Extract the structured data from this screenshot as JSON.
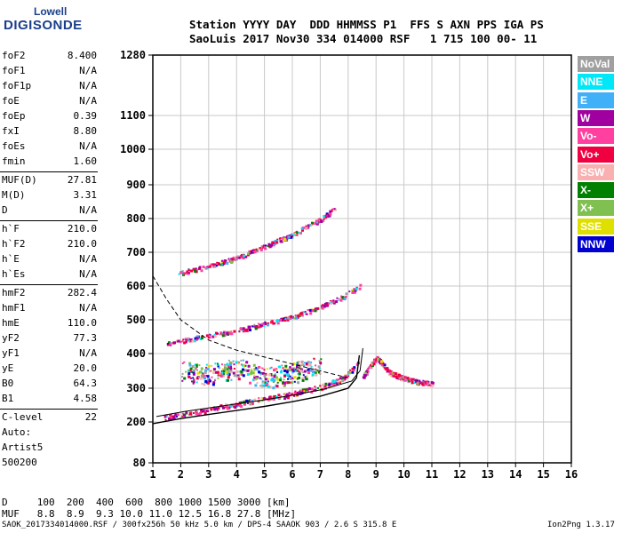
{
  "logo": {
    "line1": "Lowell",
    "line2": "DIGISONDE"
  },
  "header": {
    "line1": "Station YYYY DAY  DDD HHMMSS P1  FFS S AXN PPS IGA PS",
    "line2": "SaoLuis 2017 Nov30 334 014000 RSF   1 715 100 00- 11"
  },
  "params": [
    {
      "name": "foF2",
      "value": "8.400"
    },
    {
      "name": "foF1",
      "value": "N/A"
    },
    {
      "name": "foF1p",
      "value": "N/A"
    },
    {
      "name": "foE",
      "value": "N/A"
    },
    {
      "name": "foEp",
      "value": "0.39"
    },
    {
      "name": "fxI",
      "value": "8.80"
    },
    {
      "name": "foEs",
      "value": "N/A"
    },
    {
      "name": "fmin",
      "value": "1.60"
    },
    {
      "name": "MUF(D)",
      "value": "27.81"
    },
    {
      "name": "M(D)",
      "value": "3.31"
    },
    {
      "name": "D",
      "value": "N/A"
    },
    {
      "name": "h`F",
      "value": "210.0"
    },
    {
      "name": "h`F2",
      "value": "210.0"
    },
    {
      "name": "h`E",
      "value": "N/A"
    },
    {
      "name": "h`Es",
      "value": "N/A"
    },
    {
      "name": "hmF2",
      "value": "282.4"
    },
    {
      "name": "hmF1",
      "value": "N/A"
    },
    {
      "name": "hmE",
      "value": "110.0"
    },
    {
      "name": "yF2",
      "value": "77.3"
    },
    {
      "name": "yF1",
      "value": "N/A"
    },
    {
      "name": "yE",
      "value": "20.0"
    },
    {
      "name": "B0",
      "value": "64.3"
    },
    {
      "name": "B1",
      "value": "4.58"
    },
    {
      "name": "C-level",
      "value": "22"
    }
  ],
  "auto": {
    "line1": "Auto:",
    "line2": "Artist5",
    "line3": "500200"
  },
  "legend": [
    {
      "label": "NoVal",
      "color": "#a0a0a0"
    },
    {
      "label": "NNE",
      "color": "#00e8f8"
    },
    {
      "label": "E",
      "color": "#40b0f8"
    },
    {
      "label": "W",
      "color": "#a000a0"
    },
    {
      "label": "Vo-",
      "color": "#ff40a0"
    },
    {
      "label": "Vo+",
      "color": "#f00040"
    },
    {
      "label": "SSW",
      "color": "#f8b0b0"
    },
    {
      "label": "X-",
      "color": "#008000"
    },
    {
      "label": "X+",
      "color": "#80c050"
    },
    {
      "label": "SSE",
      "color": "#e0e000"
    },
    {
      "label": "NNW",
      "color": "#0000d0"
    }
  ],
  "bottom": {
    "dist_line": "D     100  200  400  600  800 1000 1500 3000 [km]",
    "muf_line": "MUF   8.8  8.9  9.3 10.0 11.0 12.5 16.8 27.8 [MHz]"
  },
  "footer": {
    "left": "SAOK_2017334014000.RSF / 300fx256h 50 kHz 5.0 km / DPS-4 SAAOK 903 / 2.6 S 315.8 E",
    "right": "Ion2Png 1.3.17"
  },
  "chart_data": {
    "type": "scatter",
    "xlim": [
      1,
      16
    ],
    "ylim": [
      80,
      1280
    ],
    "x_ticks": [
      1,
      2,
      3,
      4,
      5,
      6,
      7,
      8,
      9,
      10,
      11,
      12,
      13,
      14,
      15,
      16
    ],
    "y_tick_labels": [
      80,
      200,
      300,
      400,
      500,
      600,
      700,
      800,
      900,
      1000,
      1100,
      1280
    ],
    "y_tick_heights": [
      80,
      200,
      300,
      400,
      500,
      600,
      700,
      800,
      900,
      1000,
      1100,
      1280
    ],
    "grid": true,
    "traces": [
      {
        "name": "F2 trace",
        "x": [
          1.4,
          2.0,
          3.0,
          4.0,
          5.0,
          6.0,
          7.0,
          7.8,
          8.2,
          8.4
        ],
        "y": [
          215,
          225,
          238,
          255,
          270,
          285,
          305,
          330,
          360,
          390
        ]
      },
      {
        "name": "2F trace",
        "x": [
          1.5,
          2.0,
          3.0,
          4.0,
          5.0,
          6.0,
          7.0,
          7.8,
          8.4
        ],
        "y": [
          430,
          440,
          455,
          470,
          490,
          510,
          540,
          570,
          600
        ]
      },
      {
        "name": "3F trace",
        "x": [
          1.9,
          3.0,
          4.0,
          5.0,
          6.0,
          7.0,
          7.5
        ],
        "y": [
          640,
          660,
          685,
          720,
          755,
          800,
          830
        ]
      },
      {
        "name": "X trace",
        "x": [
          8.5,
          8.7,
          9.0,
          9.5,
          10.0,
          10.5,
          11.0
        ],
        "y": [
          330,
          360,
          390,
          345,
          330,
          320,
          315
        ]
      },
      {
        "name": "scatter cloud",
        "x": [
          2.0,
          3.0,
          4.0,
          5.0,
          6.0,
          7.0
        ],
        "y": [
          350,
          340,
          360,
          330,
          345,
          370
        ]
      }
    ],
    "model_curve": {
      "x": [
        1.0,
        2.0,
        3.0,
        4.0,
        5.0,
        6.0,
        7.0,
        8.0,
        8.3,
        8.4
      ],
      "y": [
        195,
        210,
        222,
        234,
        246,
        260,
        276,
        300,
        330,
        395
      ]
    },
    "muf_curve": {
      "x": [
        1.0,
        1.5,
        2.0,
        3.0,
        4.0,
        5.0,
        6.0,
        7.0,
        8.0
      ],
      "y": [
        630,
        560,
        500,
        440,
        410,
        390,
        370,
        350,
        330
      ]
    }
  }
}
